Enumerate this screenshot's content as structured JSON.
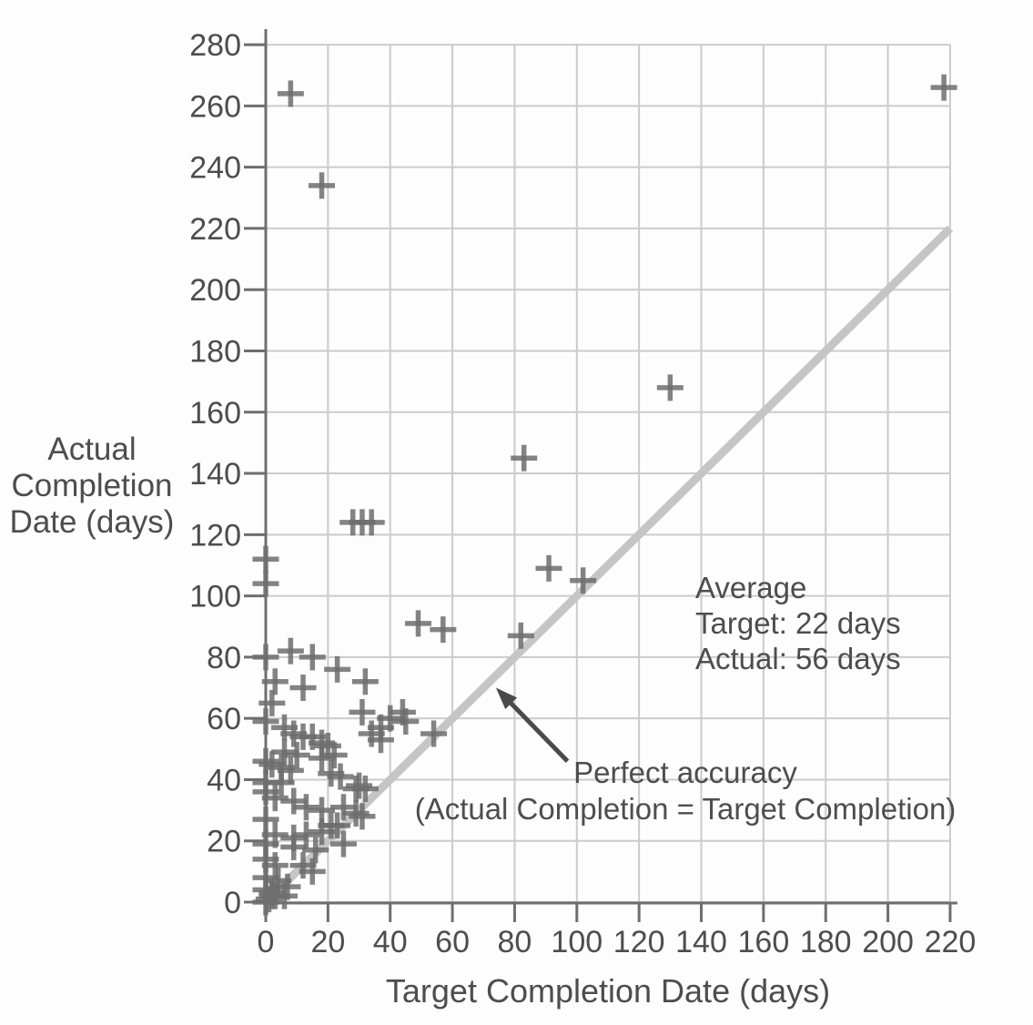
{
  "chart_data": {
    "type": "scatter",
    "title": "",
    "xlabel": "Target Completion Date (days)",
    "ylabel": "Actual Completion Date (days)",
    "ylabel_multiline": "Actual\nCompletion\nDate (days)",
    "xlim": [
      0,
      220
    ],
    "ylim": [
      0,
      280
    ],
    "x_ticks": [
      0,
      20,
      40,
      60,
      80,
      100,
      120,
      140,
      160,
      180,
      200,
      220
    ],
    "y_ticks": [
      0,
      20,
      40,
      60,
      80,
      100,
      120,
      140,
      160,
      180,
      200,
      220,
      240,
      260,
      280
    ],
    "grid": true,
    "legend": "none",
    "marker": "plus",
    "points": [
      [
        8,
        264
      ],
      [
        18,
        234
      ],
      [
        218,
        266
      ],
      [
        130,
        168
      ],
      [
        83,
        145
      ],
      [
        28,
        124
      ],
      [
        31,
        124
      ],
      [
        34,
        124
      ],
      [
        0,
        112
      ],
      [
        0,
        104
      ],
      [
        91,
        109
      ],
      [
        102,
        105
      ],
      [
        49,
        91
      ],
      [
        57,
        89
      ],
      [
        82,
        87
      ],
      [
        8,
        82
      ],
      [
        15,
        80
      ],
      [
        23,
        76
      ],
      [
        0,
        80
      ],
      [
        3,
        72
      ],
      [
        12,
        70
      ],
      [
        32,
        72
      ],
      [
        2,
        65
      ],
      [
        31,
        62
      ],
      [
        44,
        62
      ],
      [
        40,
        60
      ],
      [
        45,
        59
      ],
      [
        37,
        57
      ],
      [
        34,
        55
      ],
      [
        37,
        53
      ],
      [
        54,
        55
      ],
      [
        0,
        59
      ],
      [
        6,
        57
      ],
      [
        9,
        55
      ],
      [
        12,
        54
      ],
      [
        15,
        54
      ],
      [
        18,
        52
      ],
      [
        20,
        51
      ],
      [
        6,
        49
      ],
      [
        10,
        48
      ],
      [
        18,
        47
      ],
      [
        22,
        48
      ],
      [
        0,
        46
      ],
      [
        2,
        45
      ],
      [
        5,
        44
      ],
      [
        8,
        43
      ],
      [
        21,
        42
      ],
      [
        24,
        41
      ],
      [
        30,
        38
      ],
      [
        29,
        37
      ],
      [
        32,
        37
      ],
      [
        0,
        39
      ],
      [
        5,
        39
      ],
      [
        0,
        36
      ],
      [
        3,
        34
      ],
      [
        9,
        33
      ],
      [
        13,
        31
      ],
      [
        18,
        30
      ],
      [
        25,
        31
      ],
      [
        29,
        29
      ],
      [
        31,
        28
      ],
      [
        21,
        25
      ],
      [
        23,
        25
      ],
      [
        0,
        27
      ],
      [
        3,
        22
      ],
      [
        9,
        21
      ],
      [
        13,
        22
      ],
      [
        18,
        23
      ],
      [
        0,
        19
      ],
      [
        9,
        18
      ],
      [
        16,
        17
      ],
      [
        25,
        19
      ],
      [
        0,
        14
      ],
      [
        3,
        12
      ],
      [
        12,
        12
      ],
      [
        15,
        10
      ],
      [
        0,
        8
      ],
      [
        4,
        7
      ],
      [
        7,
        5
      ],
      [
        0,
        4
      ],
      [
        2,
        3
      ],
      [
        1,
        1
      ],
      [
        0,
        0
      ],
      [
        2,
        2
      ],
      [
        3,
        2
      ],
      [
        6,
        2
      ]
    ],
    "reference_line": {
      "from": [
        0,
        0
      ],
      "to": [
        220,
        220
      ],
      "meaning": "Perfect accuracy (Actual Completion = Target Completion)"
    },
    "annotations": {
      "average": "Average\nTarget: 22 days\nActual: 56 days",
      "perfect_accuracy": "Perfect accuracy\n(Actual Completion = Target Completion)",
      "arrow_from_xy": [
        97,
        46
      ],
      "arrow_to_xy": [
        74,
        70
      ]
    },
    "colors": {
      "marker": "#6e6e6e",
      "grid": "#cbcbcb",
      "reference_line": "#c5c5c5",
      "axis": "#6e6e6e",
      "text": "#4d4d4d",
      "arrow": "#4a4a4a"
    }
  }
}
